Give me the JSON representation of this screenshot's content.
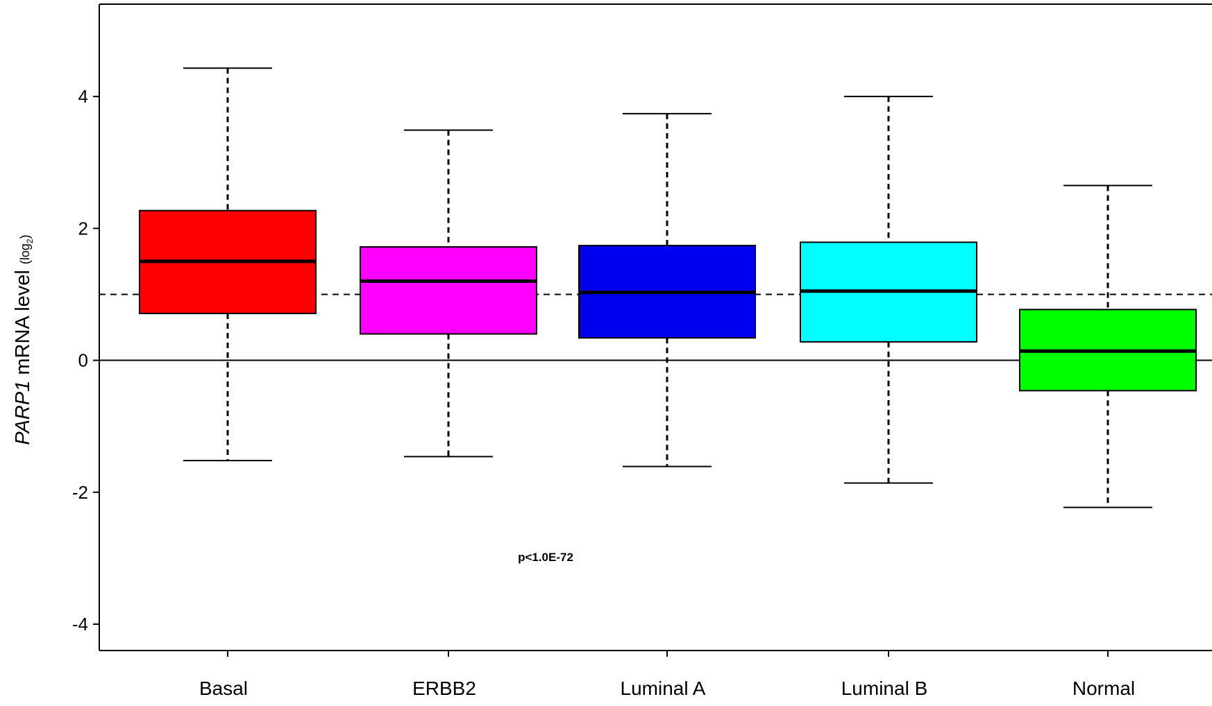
{
  "chart_data": {
    "type": "box",
    "ylabel": {
      "gene": "PARP1",
      "text": " mRNA level ",
      "unit_prefix": "(log",
      "unit_sub": "2",
      "unit_suffix": ")"
    },
    "ylim": [
      -4.4,
      5.4
    ],
    "yticks": [
      -4,
      -2,
      0,
      2,
      4
    ],
    "ytick_labels": [
      "-4",
      "-2",
      "0",
      "2",
      "4"
    ],
    "reference_lines": {
      "solid": 0,
      "dashed": 1.0
    },
    "annotation": "p<1.0E-72",
    "annotation_position": {
      "category": "ERBB2",
      "y": -2.98
    },
    "grid": false,
    "legend": "none",
    "categories": [
      "Basal",
      "ERBB2",
      "Luminal A",
      "Luminal B",
      "Normal"
    ],
    "boxes": [
      {
        "name": "Basal",
        "whisker_low": -1.52,
        "q1": 0.71,
        "median": 1.5,
        "q3": 2.27,
        "whisker_high": 4.43,
        "color": "#ff0000"
      },
      {
        "name": "ERBB2",
        "whisker_low": -1.46,
        "q1": 0.4,
        "median": 1.2,
        "q3": 1.72,
        "whisker_high": 3.49,
        "color": "#ff00ff"
      },
      {
        "name": "Luminal A",
        "whisker_low": -1.61,
        "q1": 0.34,
        "median": 1.03,
        "q3": 1.74,
        "whisker_high": 3.74,
        "color": "#0000ee"
      },
      {
        "name": "Luminal B",
        "whisker_low": -1.86,
        "q1": 0.28,
        "median": 1.05,
        "q3": 1.79,
        "whisker_high": 4.0,
        "color": "#00ffff"
      },
      {
        "name": "Normal",
        "whisker_low": -2.23,
        "q1": -0.46,
        "median": 0.14,
        "q3": 0.77,
        "whisker_high": 2.65,
        "color": "#00ff00"
      }
    ]
  }
}
